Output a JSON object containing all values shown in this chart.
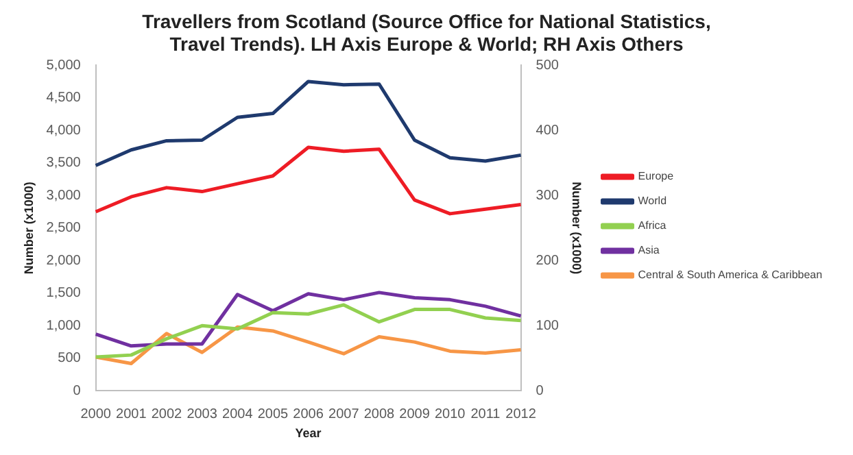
{
  "chart_data": {
    "type": "line",
    "title": "Travellers from Scotland (Source Office for National Statistics, Travel Trends). LH Axis Europe & World; RH Axis Others",
    "xlabel": "Year",
    "ylabel": "Number (x1000)",
    "y2label": "Number (x1000)",
    "categories": [
      "2000",
      "2001",
      "2002",
      "2003",
      "2004",
      "2005",
      "2006",
      "2007",
      "2008",
      "2009",
      "2010",
      "2011",
      "2012"
    ],
    "series": [
      {
        "name": "Europe",
        "color": "#ee1c25",
        "values": [
          2750,
          2980,
          3120,
          3060,
          3180,
          3300,
          3740,
          3680,
          3710,
          2930,
          2720,
          2790,
          2860
        ]
      },
      {
        "name": "World",
        "color": "#1f3a6e",
        "values": [
          3460,
          3700,
          3840,
          3850,
          4200,
          4260,
          4750,
          4700,
          4710,
          3850,
          3580,
          3530,
          3620
        ]
      },
      {
        "name": "Africa",
        "color": "#92d050",
        "axis": "y2",
        "values": [
          52,
          55,
          80,
          100,
          95,
          120,
          118,
          132,
          106,
          125,
          125,
          112,
          108
        ]
      },
      {
        "name": "Asia",
        "color": "#7030a0",
        "axis": "y2",
        "values": [
          87,
          69,
          72,
          72,
          148,
          123,
          149,
          140,
          151,
          143,
          140,
          130,
          115
        ]
      },
      {
        "name": "Central & South America & Caribbean",
        "color": "#f79646",
        "axis": "y2",
        "values": [
          52,
          42,
          88,
          59,
          98,
          92,
          75,
          57,
          83,
          75,
          61,
          58,
          63
        ]
      }
    ],
    "ylim": [
      0,
      5000
    ],
    "yticks": [
      {
        "value": 0,
        "label": "0"
      },
      {
        "value": 500,
        "label": "500"
      },
      {
        "value": 1000,
        "label": "1,000"
      },
      {
        "value": 1500,
        "label": "1,500"
      },
      {
        "value": 2000,
        "label": "2,000"
      },
      {
        "value": 2500,
        "label": "2,500"
      },
      {
        "value": 3000,
        "label": "3,000"
      },
      {
        "value": 3500,
        "label": "3,500"
      },
      {
        "value": 4000,
        "label": "4,000"
      },
      {
        "value": 4500,
        "label": "4,500"
      },
      {
        "value": 5000,
        "label": "5,000"
      }
    ],
    "y2lim": [
      0,
      500
    ],
    "y2ticks": [
      0,
      100,
      200,
      300,
      400,
      500
    ],
    "grid": false,
    "legend": "right",
    "marker": "none",
    "line_style": "solid"
  }
}
